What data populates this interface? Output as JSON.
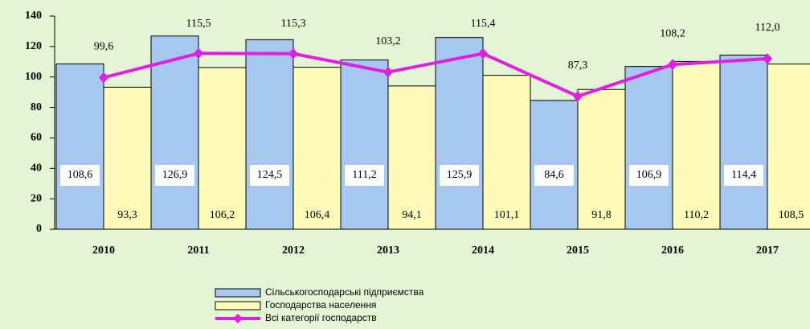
{
  "chart_data": {
    "type": "bar",
    "categories": [
      "2010",
      "2011",
      "2012",
      "2013",
      "2014",
      "2015",
      "2016",
      "2017"
    ],
    "series": [
      {
        "name": "Сільськогосподарські підприємства",
        "type": "bar",
        "color": "#a6c8f0",
        "values": [
          108.6,
          126.9,
          124.5,
          111.2,
          125.9,
          84.6,
          106.9,
          114.4
        ],
        "value_labels": [
          "108,6",
          "126,9",
          "124,5",
          "111,2",
          "125,9",
          "84,6",
          "106,9",
          "114,4"
        ]
      },
      {
        "name": "Господарства населення",
        "type": "bar",
        "color": "#fffbb8",
        "values": [
          93.3,
          106.2,
          106.4,
          94.1,
          101.1,
          91.8,
          110.2,
          108.5
        ],
        "value_labels": [
          "93,3",
          "106,2",
          "106,4",
          "94,1",
          "101,1",
          "91,8",
          "110,2",
          "108,5"
        ]
      },
      {
        "name": "Всі категорії господарств",
        "type": "line",
        "color": "#e020e0",
        "values": [
          99.6,
          115.5,
          115.3,
          103.2,
          115.4,
          87.3,
          108.2,
          112.0
        ],
        "value_labels": [
          "99,6",
          "115,5",
          "115,3",
          "103,2",
          "115,4",
          "87,3",
          "108,2",
          "112,0"
        ]
      }
    ],
    "ylim": [
      0,
      140
    ],
    "yticks": [
      0,
      20,
      40,
      60,
      80,
      100,
      120,
      140
    ],
    "grid": false,
    "legend": "bottom"
  }
}
